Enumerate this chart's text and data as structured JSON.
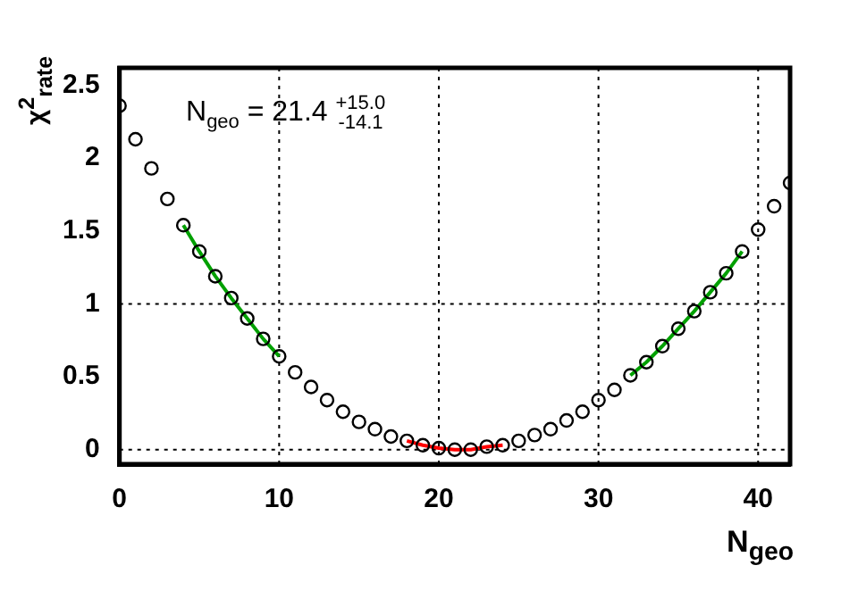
{
  "chart_data": {
    "type": "scatter",
    "xlabel": "N$_{geo}$",
    "ylabel": "χ$^{2}$$_{rate}$",
    "annotations": [
      "N$_{geo}$ = 21.4 $^{+15.0}$$_{-14.1}$"
    ],
    "xlim": [
      0,
      42
    ],
    "xticks": [
      0,
      10,
      20,
      30,
      40
    ],
    "ylim": [
      -0.1,
      2.62
    ],
    "yticks": [
      0,
      0.5,
      1,
      1.5,
      2,
      2.5
    ],
    "grid": false,
    "legend": false,
    "ref_lines": [
      {
        "axis": "x",
        "value": 10,
        "line_style": "dotted"
      },
      {
        "axis": "x",
        "value": 20,
        "line_style": "dotted"
      },
      {
        "axis": "x",
        "value": 30,
        "line_style": "dotted"
      },
      {
        "axis": "x",
        "value": 40,
        "line_style": "dotted"
      },
      {
        "axis": "y",
        "value": 0,
        "line_style": "dotted"
      },
      {
        "axis": "y",
        "value": 1,
        "line_style": "dotted"
      }
    ],
    "series": [
      {
        "marker": "circle",
        "color": "#000000",
        "x": [
          0,
          1,
          2,
          3,
          4,
          5,
          6,
          7,
          8,
          9,
          10,
          11,
          12,
          13,
          14,
          15,
          16,
          17,
          18,
          19,
          20,
          21,
          22,
          23,
          24,
          25,
          26,
          27,
          28,
          29,
          30,
          31,
          32,
          33,
          34,
          35,
          36,
          37,
          38,
          39,
          40,
          41,
          42
        ],
        "values": [
          2.36,
          2.13,
          1.93,
          1.72,
          1.54,
          1.36,
          1.19,
          1.04,
          0.9,
          0.76,
          0.64,
          0.53,
          0.43,
          0.34,
          0.26,
          0.19,
          0.14,
          0.09,
          0.06,
          0.03,
          0.01,
          0,
          0,
          0.02,
          0.03,
          0.06,
          0.1,
          0.14,
          0.2,
          0.26,
          0.34,
          0.41,
          0.51,
          0.6,
          0.71,
          0.83,
          0.95,
          1.08,
          1.21,
          1.36,
          1.51,
          1.67,
          1.83
        ]
      },
      {
        "type": "line",
        "marker": "none",
        "color": "#00a000",
        "x": [
          4,
          5,
          6,
          7,
          8,
          9,
          10
        ],
        "values": [
          1.54,
          1.36,
          1.19,
          1.04,
          0.9,
          0.76,
          0.64
        ]
      },
      {
        "type": "line",
        "marker": "none",
        "color": "#00a000",
        "x": [
          32,
          33,
          34,
          35,
          36,
          37,
          38,
          39
        ],
        "values": [
          0.51,
          0.6,
          0.71,
          0.83,
          0.95,
          1.08,
          1.21,
          1.36
        ]
      },
      {
        "type": "line",
        "marker": "none",
        "color": "#ff0000",
        "x": [
          18,
          19,
          20,
          21,
          22,
          23,
          24
        ],
        "values": [
          0.06,
          0.03,
          0.01,
          0,
          0,
          0.02,
          0.03
        ]
      }
    ]
  }
}
